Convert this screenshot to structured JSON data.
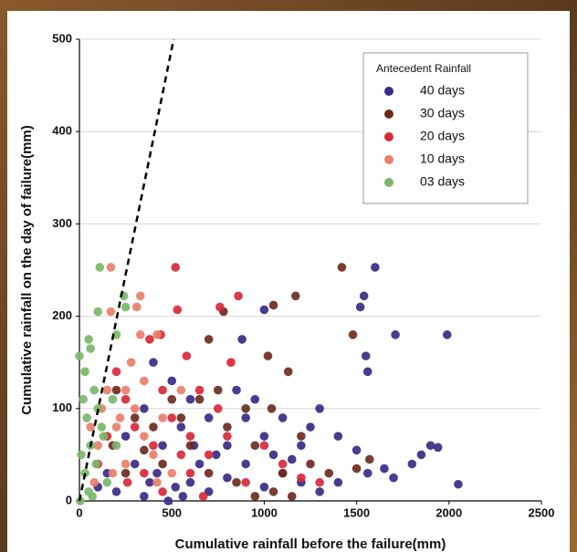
{
  "chart_data": {
    "type": "scatter",
    "x_label": "Cumulative rainfall before the failure(mm)",
    "y_label": "Cumulative rainfall on the day of failure(mm)",
    "legend_title": "Antecedent Rainfall",
    "legend_position": "top-right",
    "grid": true,
    "xlim": [
      0,
      2500
    ],
    "ylim": [
      0,
      500
    ],
    "xticks": [
      0,
      500,
      1000,
      1500,
      2000,
      2500
    ],
    "yticks": [
      0,
      100,
      200,
      300,
      400,
      500
    ],
    "reference_line": {
      "x": [
        0,
        510
      ],
      "y": [
        0,
        500
      ],
      "color": "#000000",
      "style": "dashed"
    },
    "series": [
      {
        "name": "40 days",
        "color": "#3a2a86",
        "x": [
          1600,
          1540,
          1520,
          1550,
          1560,
          1710,
          1990,
          880,
          1000,
          2050,
          1900,
          1940,
          1850,
          1800,
          1700,
          1650,
          1560,
          1500,
          1400,
          1300,
          1250,
          1200,
          1100,
          1000,
          950,
          850,
          800,
          700,
          650,
          600,
          550,
          500,
          450,
          400,
          380,
          350,
          300,
          250,
          200,
          150,
          100,
          600,
          700,
          800,
          900,
          1000,
          1100,
          1200,
          1300,
          1400,
          480,
          560,
          620,
          740,
          900,
          1050,
          1150,
          350,
          420,
          520
        ],
        "y": [
          253,
          222,
          210,
          157,
          140,
          180,
          180,
          175,
          207,
          18,
          60,
          58,
          50,
          40,
          25,
          35,
          30,
          55,
          70,
          100,
          80,
          60,
          90,
          70,
          110,
          120,
          60,
          90,
          40,
          110,
          80,
          130,
          60,
          150,
          20,
          100,
          40,
          70,
          10,
          30,
          15,
          20,
          10,
          25,
          40,
          15,
          30,
          20,
          10,
          20,
          0,
          5,
          60,
          50,
          90,
          50,
          45,
          5,
          30,
          15
        ]
      },
      {
        "name": "30 days",
        "color": "#6e2b1f",
        "x": [
          1420,
          1170,
          1050,
          1130,
          1040,
          1020,
          1480,
          780,
          700,
          1200,
          1500,
          1570,
          1350,
          1250,
          1100,
          950,
          900,
          800,
          750,
          650,
          600,
          550,
          500,
          450,
          400,
          350,
          300,
          250,
          200,
          180,
          700,
          850,
          1050,
          1150,
          950
        ],
        "y": [
          253,
          222,
          212,
          140,
          100,
          157,
          180,
          205,
          175,
          70,
          35,
          45,
          30,
          40,
          30,
          60,
          100,
          80,
          120,
          110,
          60,
          90,
          110,
          40,
          80,
          55,
          90,
          30,
          120,
          60,
          30,
          20,
          10,
          5,
          5
        ]
      },
      {
        "name": "20 days",
        "color": "#d9283a",
        "x": [
          520,
          860,
          760,
          530,
          380,
          580,
          440,
          820,
          750,
          650,
          600,
          550,
          500,
          450,
          400,
          350,
          300,
          250,
          200,
          150,
          100,
          700,
          800,
          900,
          1000,
          1100,
          1200,
          1300,
          260,
          450,
          600,
          670
        ],
        "y": [
          253,
          222,
          210,
          207,
          175,
          157,
          180,
          150,
          100,
          120,
          70,
          50,
          90,
          120,
          60,
          30,
          80,
          110,
          140,
          70,
          40,
          50,
          70,
          20,
          60,
          40,
          25,
          20,
          20,
          10,
          30,
          5
        ]
      },
      {
        "name": "10 days",
        "color": "#e8806a",
        "x": [
          170,
          330,
          310,
          170,
          420,
          330,
          250,
          300,
          350,
          400,
          450,
          200,
          150,
          100,
          80,
          500,
          250,
          180,
          350,
          280,
          220,
          550,
          120,
          60,
          420
        ],
        "y": [
          253,
          222,
          210,
          205,
          180,
          180,
          120,
          100,
          70,
          50,
          90,
          80,
          120,
          60,
          20,
          30,
          40,
          30,
          130,
          150,
          90,
          120,
          100,
          80,
          20
        ]
      },
      {
        "name": "03 days",
        "color": "#7ab869",
        "x": [
          110,
          240,
          250,
          200,
          100,
          50,
          60,
          0,
          30,
          80,
          20,
          100,
          40,
          120,
          60,
          10,
          90,
          30,
          150,
          50,
          5,
          130,
          180,
          200,
          70
        ],
        "y": [
          253,
          222,
          210,
          180,
          205,
          175,
          165,
          157,
          140,
          120,
          110,
          100,
          90,
          80,
          60,
          50,
          40,
          30,
          20,
          10,
          0,
          70,
          110,
          60,
          5
        ]
      }
    ]
  }
}
